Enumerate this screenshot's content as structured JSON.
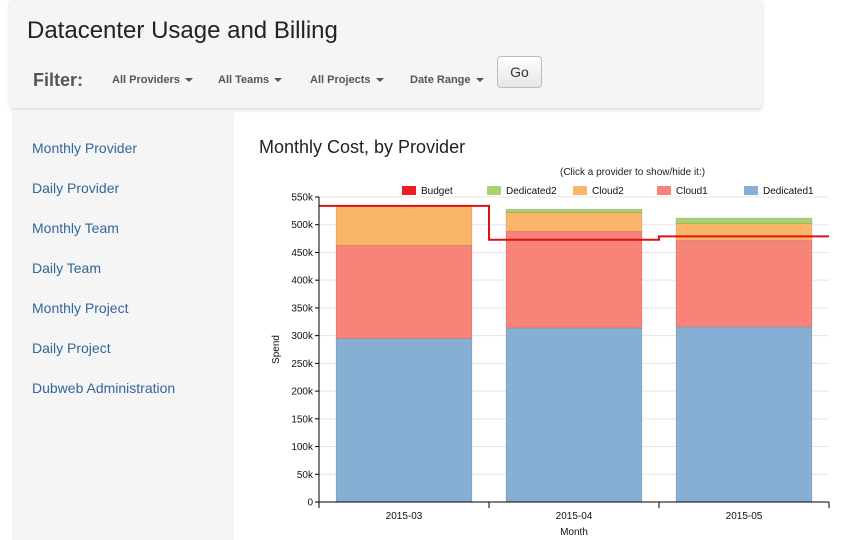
{
  "header": {
    "title": "Datacenter Usage and Billing",
    "filter_label": "Filter:",
    "filters": [
      "All Providers",
      "All Teams",
      "All Projects",
      "Date Range"
    ],
    "go_label": "Go"
  },
  "sidebar": {
    "items": [
      {
        "label": "Monthly Provider"
      },
      {
        "label": "Daily Provider"
      },
      {
        "label": "Monthly Team"
      },
      {
        "label": "Daily Team"
      },
      {
        "label": "Monthly Project"
      },
      {
        "label": "Daily Project"
      },
      {
        "label": "Dubweb Administration"
      }
    ]
  },
  "main": {
    "chart_title": "Monthly Cost, by Provider",
    "hint": "(Click a provider to show/hide it:)"
  },
  "chart_data": {
    "type": "bar",
    "stacked": true,
    "title": "Monthly Cost, by Provider",
    "xlabel": "Month",
    "ylabel": "Spend",
    "ylim": [
      0,
      550000
    ],
    "yticks": [
      0,
      50000,
      100000,
      150000,
      200000,
      250000,
      300000,
      350000,
      400000,
      450000,
      500000,
      550000
    ],
    "ytick_labels": [
      "0",
      "50k",
      "100k",
      "150k",
      "200k",
      "250k",
      "300k",
      "350k",
      "400k",
      "450k",
      "500k",
      "550k"
    ],
    "categories": [
      "2015-03",
      "2015-04",
      "2015-05"
    ],
    "series": [
      {
        "name": "Dedicated1",
        "color": "#87aed3",
        "values": [
          295000,
          314000,
          316000
        ]
      },
      {
        "name": "Cloud1",
        "color": "#f88379",
        "values": [
          168000,
          174000,
          156000
        ]
      },
      {
        "name": "Cloud2",
        "color": "#fbb56b",
        "values": [
          71000,
          34000,
          30000
        ]
      },
      {
        "name": "Dedicated2",
        "color": "#a8d16f",
        "values": [
          0,
          6000,
          10000
        ]
      }
    ],
    "budget": {
      "name": "Budget",
      "color": "#dd1111",
      "values": [
        534000,
        473000,
        479000
      ]
    },
    "legend": [
      {
        "name": "Budget",
        "color": "#ee1c25"
      },
      {
        "name": "Dedicated2",
        "color": "#a8d16f"
      },
      {
        "name": "Cloud2",
        "color": "#fbb56b"
      },
      {
        "name": "Cloud1",
        "color": "#f88379"
      },
      {
        "name": "Dedicated1",
        "color": "#87aed3"
      }
    ],
    "legend_position": "top",
    "grid": true
  }
}
